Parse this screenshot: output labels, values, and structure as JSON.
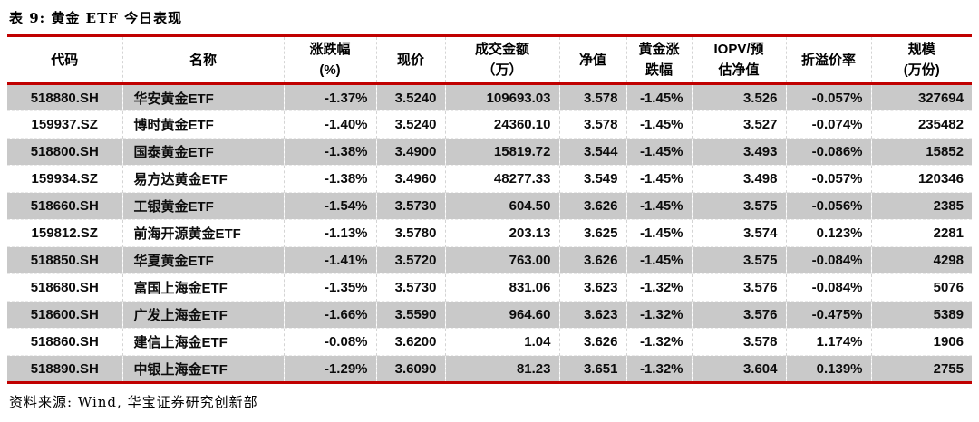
{
  "title": "表 9: 黄金 ETF 今日表现",
  "colors": {
    "accent_red": "#c00000",
    "row_stripe_gray": "#c9c9c9",
    "text": "#000000"
  },
  "table": {
    "columns": [
      {
        "line1": "代码",
        "line2": ""
      },
      {
        "line1": "名称",
        "line2": ""
      },
      {
        "line1": "涨跌幅",
        "line2": "(%)"
      },
      {
        "line1": "现价",
        "line2": ""
      },
      {
        "line1": "成交金额",
        "line2": "（万）"
      },
      {
        "line1": "净值",
        "line2": ""
      },
      {
        "line1": "黄金涨",
        "line2": "跌幅"
      },
      {
        "line1": "IOPV/预",
        "line2": "估净值"
      },
      {
        "line1": "折溢价率",
        "line2": ""
      },
      {
        "line1": "规模",
        "line2": "(万份)"
      }
    ],
    "rows": [
      [
        "518880.SH",
        "华安黄金ETF",
        "-1.37%",
        "3.5240",
        "109693.03",
        "3.578",
        "-1.45%",
        "3.526",
        "-0.057%",
        "327694"
      ],
      [
        "159937.SZ",
        "博时黄金ETF",
        "-1.40%",
        "3.5240",
        "24360.10",
        "3.578",
        "-1.45%",
        "3.527",
        "-0.074%",
        "235482"
      ],
      [
        "518800.SH",
        "国泰黄金ETF",
        "-1.38%",
        "3.4900",
        "15819.72",
        "3.544",
        "-1.45%",
        "3.493",
        "-0.086%",
        "15852"
      ],
      [
        "159934.SZ",
        "易方达黄金ETF",
        "-1.38%",
        "3.4960",
        "48277.33",
        "3.549",
        "-1.45%",
        "3.498",
        "-0.057%",
        "120346"
      ],
      [
        "518660.SH",
        "工银黄金ETF",
        "-1.54%",
        "3.5730",
        "604.50",
        "3.626",
        "-1.45%",
        "3.575",
        "-0.056%",
        "2385"
      ],
      [
        "159812.SZ",
        "前海开源黄金ETF",
        "-1.13%",
        "3.5780",
        "203.13",
        "3.625",
        "-1.45%",
        "3.574",
        "0.123%",
        "2281"
      ],
      [
        "518850.SH",
        "华夏黄金ETF",
        "-1.41%",
        "3.5720",
        "763.00",
        "3.626",
        "-1.45%",
        "3.575",
        "-0.084%",
        "4298"
      ],
      [
        "518680.SH",
        "富国上海金ETF",
        "-1.35%",
        "3.5730",
        "831.06",
        "3.623",
        "-1.32%",
        "3.576",
        "-0.084%",
        "5076"
      ],
      [
        "518600.SH",
        "广发上海金ETF",
        "-1.66%",
        "3.5590",
        "964.60",
        "3.623",
        "-1.32%",
        "3.576",
        "-0.475%",
        "5389"
      ],
      [
        "518860.SH",
        "建信上海金ETF",
        "-0.08%",
        "3.6200",
        "1.04",
        "3.626",
        "-1.32%",
        "3.578",
        "1.174%",
        "1906"
      ],
      [
        "518890.SH",
        "中银上海金ETF",
        "-1.29%",
        "3.6090",
        "81.23",
        "3.651",
        "-1.32%",
        "3.604",
        "0.139%",
        "2755"
      ]
    ]
  },
  "footer": {
    "source_note": "资料来源: Wind, 华宝证券研究创新部"
  }
}
